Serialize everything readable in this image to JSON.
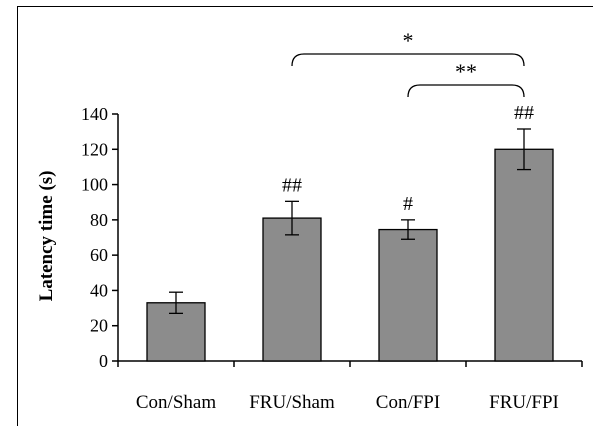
{
  "chart_data": {
    "type": "bar",
    "categories": [
      "Con/Sham",
      "FRU/Sham",
      "Con/FPI",
      "FRU/FPI"
    ],
    "values": [
      33,
      81,
      74.5,
      120
    ],
    "errors": [
      6,
      9.5,
      5.5,
      11.5
    ],
    "bar_annotations": [
      "",
      "##",
      "#",
      "##"
    ],
    "significance": [
      {
        "from": "FRU/Sham",
        "to": "FRU/FPI",
        "label": "*"
      },
      {
        "from": "Con/FPI",
        "to": "FRU/FPI",
        "label": "**"
      }
    ],
    "title": "",
    "xlabel": "",
    "ylabel": "Latency time (s)",
    "ylim": [
      0,
      140
    ],
    "yticks": [
      "0",
      "20",
      "40",
      "60",
      "80",
      "100",
      "120",
      "140"
    ],
    "grid": false,
    "bar_color": "#8c8c8c"
  }
}
